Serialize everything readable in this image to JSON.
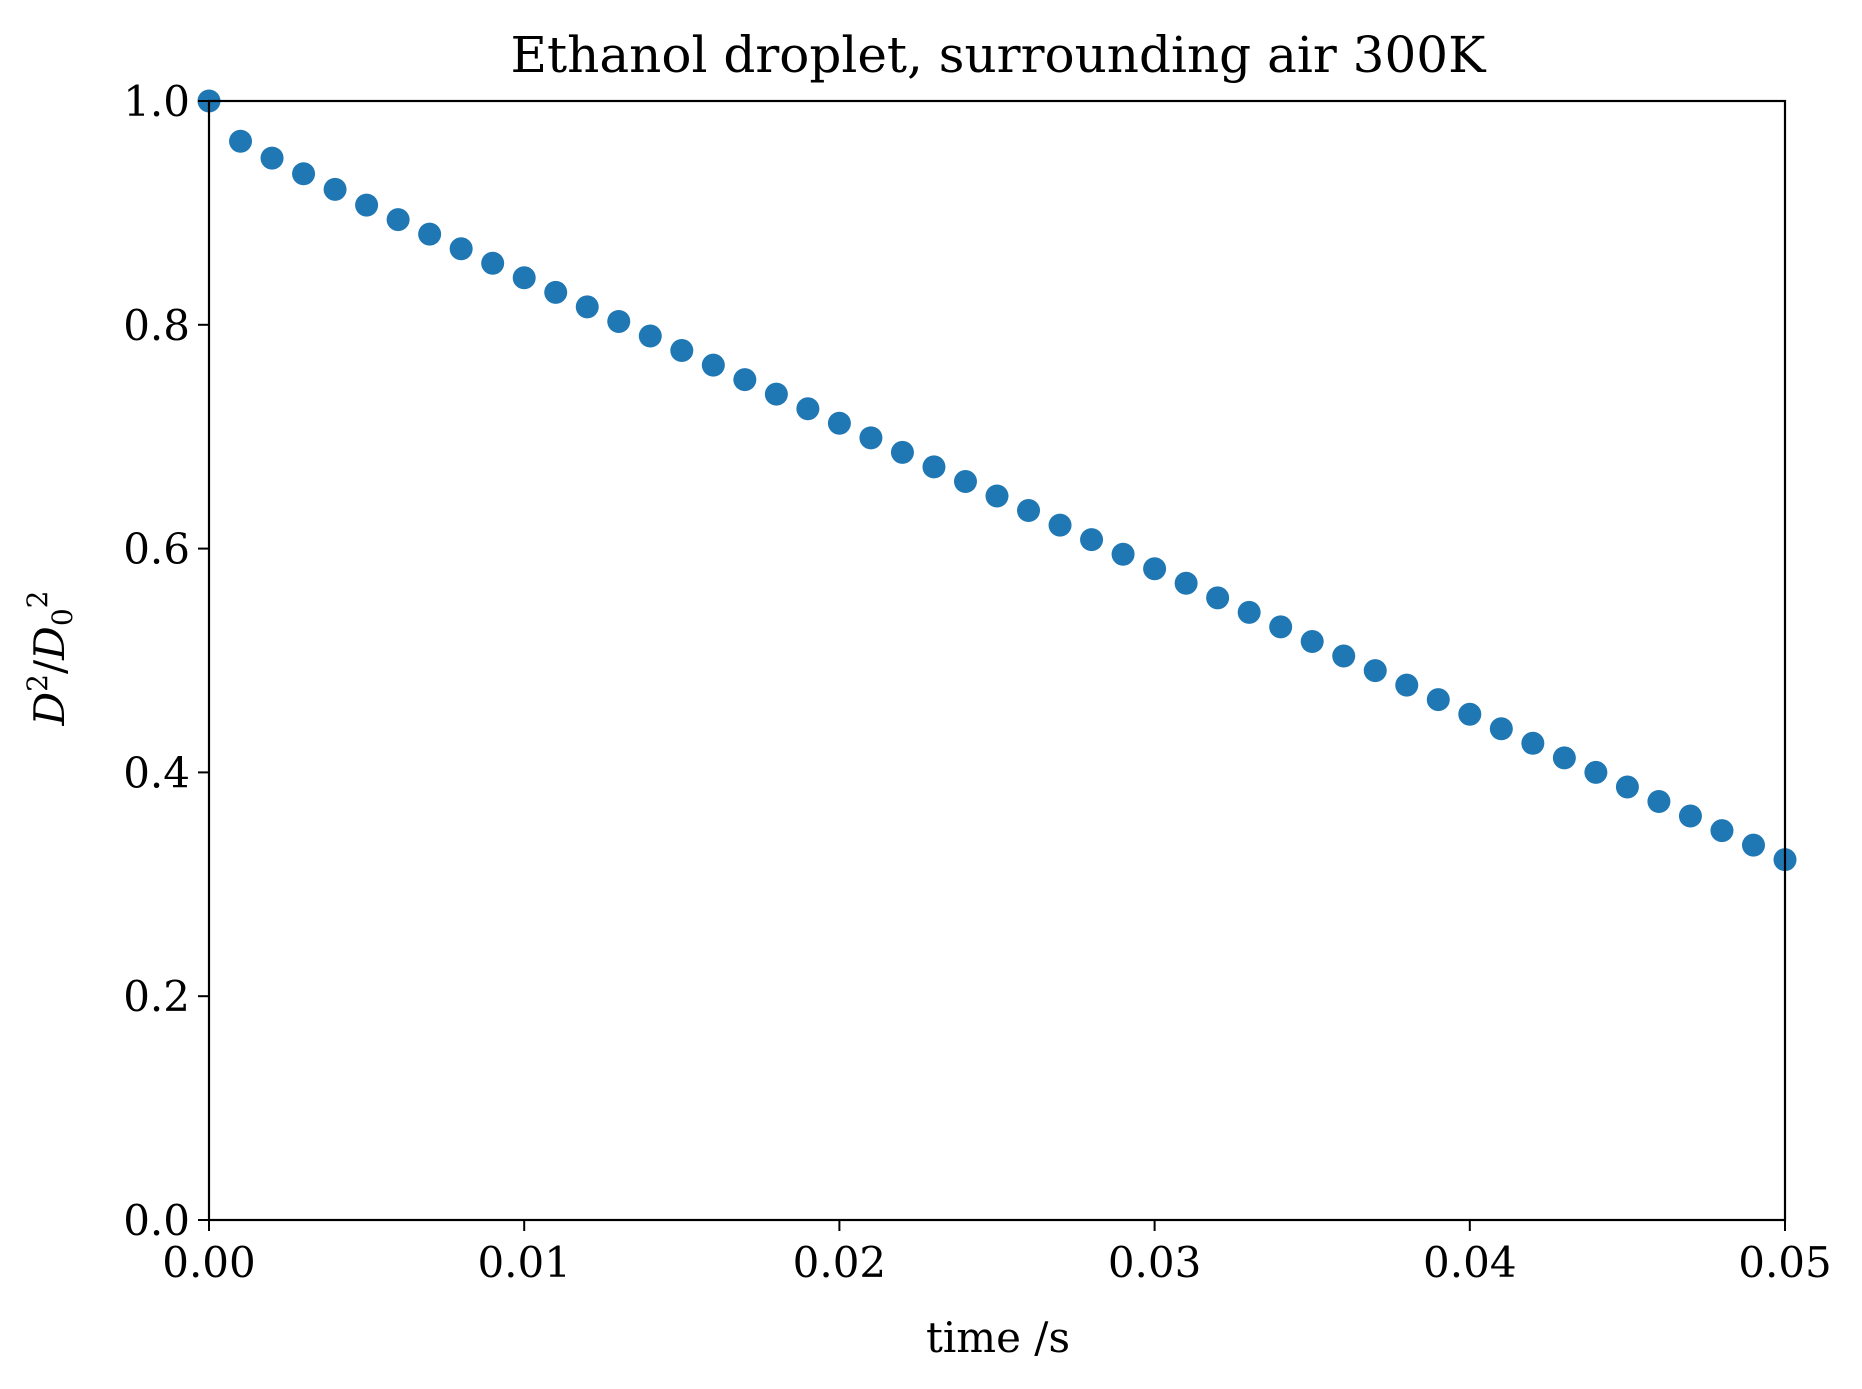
{
  "chart_data": {
    "type": "scatter",
    "title": "Ethanol droplet, surrounding air 300K",
    "xlabel": "time /s",
    "ylabel": "D²/D₀²",
    "ylabel_parts": {
      "base": "D",
      "exp": "2",
      "slash": "/",
      "sub": "0"
    },
    "xlim": [
      0.0,
      0.05
    ],
    "ylim": [
      0.0,
      1.0
    ],
    "xticks": [
      0.0,
      0.01,
      0.02,
      0.03,
      0.04,
      0.05
    ],
    "xtick_labels": [
      "0.00",
      "0.01",
      "0.02",
      "0.03",
      "0.04",
      "0.05"
    ],
    "yticks": [
      0.0,
      0.2,
      0.4,
      0.6,
      0.8,
      1.0
    ],
    "ytick_labels": [
      "0.0",
      "0.2",
      "0.4",
      "0.6",
      "0.8",
      "1.0"
    ],
    "grid": false,
    "marker_color": "#1f77b4",
    "series": [
      {
        "x": [
          0.0,
          0.001,
          0.002,
          0.003,
          0.004,
          0.005,
          0.006,
          0.007,
          0.008,
          0.009,
          0.01,
          0.011,
          0.012,
          0.013,
          0.014,
          0.015,
          0.016,
          0.017,
          0.018,
          0.019,
          0.02,
          0.021,
          0.022,
          0.023,
          0.024,
          0.025,
          0.026,
          0.027,
          0.028,
          0.029,
          0.03,
          0.031,
          0.032,
          0.033,
          0.034,
          0.035,
          0.036,
          0.037,
          0.038,
          0.039,
          0.04,
          0.041,
          0.042,
          0.043,
          0.044,
          0.045,
          0.046,
          0.047,
          0.048,
          0.049,
          0.05
        ],
        "y": [
          1.0,
          0.964,
          0.949,
          0.935,
          0.921,
          0.907,
          0.894,
          0.881,
          0.868,
          0.855,
          0.842,
          0.829,
          0.816,
          0.803,
          0.79,
          0.777,
          0.764,
          0.751,
          0.738,
          0.725,
          0.712,
          0.699,
          0.686,
          0.673,
          0.66,
          0.647,
          0.634,
          0.621,
          0.608,
          0.595,
          0.582,
          0.569,
          0.556,
          0.543,
          0.53,
          0.517,
          0.504,
          0.491,
          0.478,
          0.465,
          0.452,
          0.439,
          0.426,
          0.413,
          0.4,
          0.387,
          0.374,
          0.361,
          0.348,
          0.335,
          0.322
        ]
      }
    ]
  }
}
